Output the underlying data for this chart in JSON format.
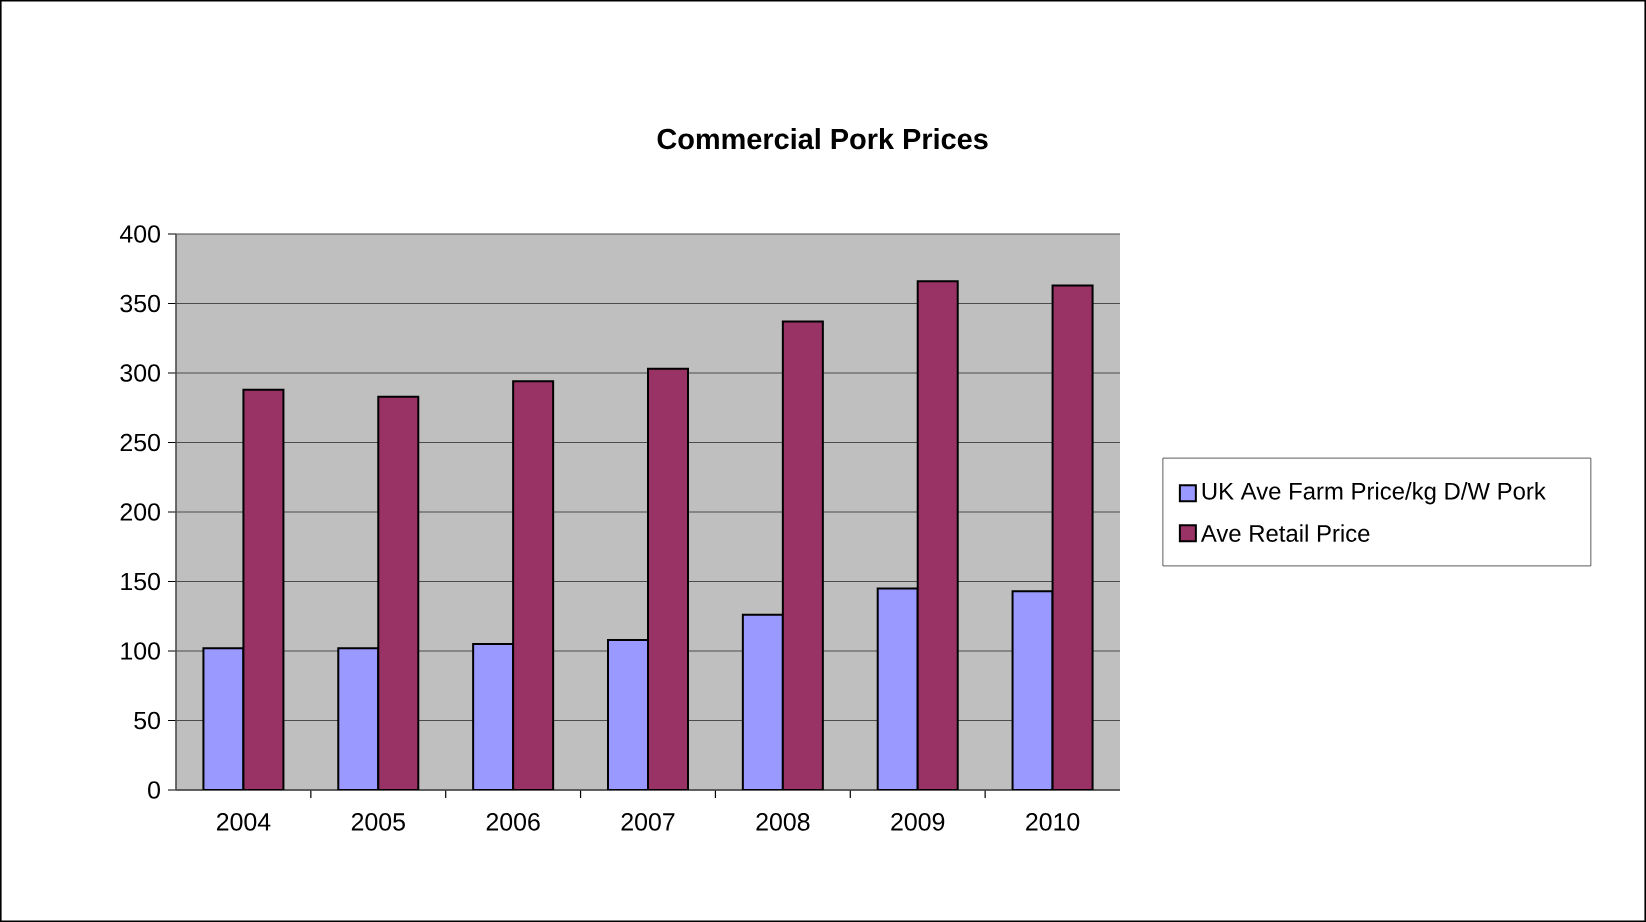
{
  "chart_data": {
    "type": "bar",
    "title": "Commercial Pork Prices",
    "categories": [
      "2004",
      "2005",
      "2006",
      "2007",
      "2008",
      "2009",
      "2010"
    ],
    "series": [
      {
        "name": "UK Ave Farm Price/kg D/W Pork",
        "color": "#9999ff",
        "values": [
          102,
          102,
          105,
          108,
          126,
          145,
          143
        ]
      },
      {
        "name": "Ave Retail Price",
        "color": "#993366",
        "values": [
          288,
          283,
          294,
          303,
          337,
          366,
          363
        ]
      }
    ],
    "ylim": [
      0,
      400
    ],
    "yticks": [
      0,
      50,
      100,
      150,
      200,
      250,
      300,
      350,
      400
    ],
    "grid": "y",
    "legend": "right"
  }
}
